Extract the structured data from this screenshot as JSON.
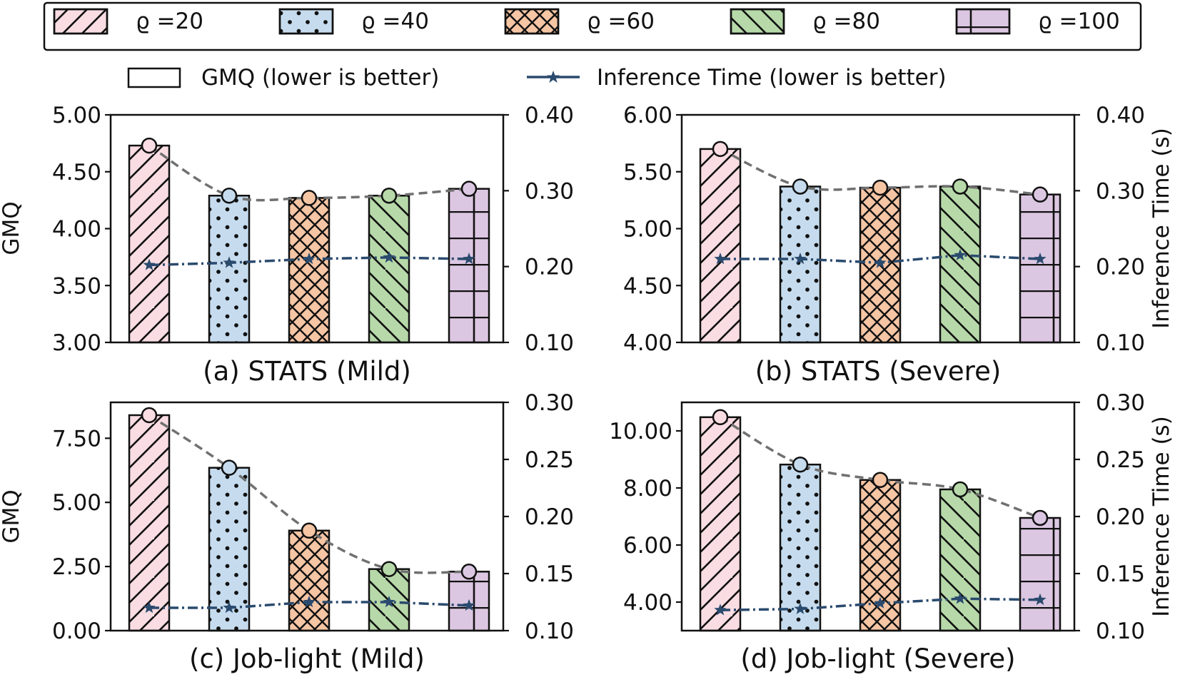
{
  "chart_data": [
    {
      "type": "bar",
      "title": "(a) STATS (Mild)",
      "categories": [
        "ϱ =20",
        "ϱ =40",
        "ϱ =60",
        "ϱ =80",
        "ϱ =100"
      ],
      "ylabel": "GMQ",
      "ylabel2": "",
      "ylim": [
        3.0,
        5.0
      ],
      "ylim2": [
        0.1,
        0.4
      ],
      "yticks": [
        "3.00",
        "3.50",
        "4.00",
        "4.50",
        "5.00"
      ],
      "yticks2": [
        "0.10",
        "0.20",
        "0.30",
        "0.40"
      ],
      "series": [
        {
          "name": "GMQ (lower is better)",
          "axis": "left",
          "values": [
            4.73,
            4.29,
            4.27,
            4.29,
            4.35
          ]
        },
        {
          "name": "Inference Time (lower is better)",
          "axis": "right",
          "values": [
            0.202,
            0.205,
            0.21,
            0.212,
            0.21
          ]
        }
      ]
    },
    {
      "type": "bar",
      "title": "(b) STATS (Severe)",
      "categories": [
        "ϱ =20",
        "ϱ =40",
        "ϱ =60",
        "ϱ =80",
        "ϱ =100"
      ],
      "ylabel": "",
      "ylabel2": "Inference Time (s)",
      "ylim": [
        4.0,
        6.0
      ],
      "ylim2": [
        0.1,
        0.4
      ],
      "yticks": [
        "4.00",
        "4.50",
        "5.00",
        "5.50",
        "6.00"
      ],
      "yticks2": [
        "0.10",
        "0.20",
        "0.30",
        "0.40"
      ],
      "series": [
        {
          "name": "GMQ (lower is better)",
          "axis": "left",
          "values": [
            5.7,
            5.37,
            5.36,
            5.37,
            5.3
          ]
        },
        {
          "name": "Inference Time (lower is better)",
          "axis": "right",
          "values": [
            0.21,
            0.21,
            0.205,
            0.215,
            0.21
          ]
        }
      ]
    },
    {
      "type": "bar",
      "title": "(c) Job-light (Mild)",
      "categories": [
        "ϱ =20",
        "ϱ =40",
        "ϱ =60",
        "ϱ =80",
        "ϱ =100"
      ],
      "ylabel": "GMQ",
      "ylabel2": "",
      "ylim": [
        0.0,
        8.9
      ],
      "ylim2": [
        0.1,
        0.3
      ],
      "yticks": [
        "0.00",
        "2.50",
        "5.00",
        "7.50"
      ],
      "yticks2": [
        "0.10",
        "0.15",
        "0.20",
        "0.25",
        "0.30"
      ],
      "series": [
        {
          "name": "GMQ (lower is better)",
          "axis": "left",
          "values": [
            8.4,
            6.35,
            3.9,
            2.4,
            2.3
          ]
        },
        {
          "name": "Inference Time (lower is better)",
          "axis": "right",
          "values": [
            0.12,
            0.12,
            0.125,
            0.125,
            0.122
          ]
        }
      ]
    },
    {
      "type": "bar",
      "title": "(d) Job-light (Severe)",
      "categories": [
        "ϱ =20",
        "ϱ =40",
        "ϱ =60",
        "ϱ =80",
        "ϱ =100"
      ],
      "ylabel": "",
      "ylabel2": "Inference Time (s)",
      "ylim": [
        3.0,
        11.0
      ],
      "ylim2": [
        0.1,
        0.3
      ],
      "yticks": [
        "4.00",
        "6.00",
        "8.00",
        "10.00"
      ],
      "yticks2": [
        "0.10",
        "0.15",
        "0.20",
        "0.25",
        "0.30"
      ],
      "series": [
        {
          "name": "GMQ (lower is better)",
          "axis": "left",
          "values": [
            10.48,
            8.82,
            8.28,
            7.95,
            6.95
          ]
        },
        {
          "name": "Inference Time (lower is better)",
          "axis": "right",
          "values": [
            0.118,
            0.119,
            0.124,
            0.128,
            0.127
          ]
        }
      ]
    }
  ],
  "legend": {
    "rho_items": [
      {
        "label": "ϱ =20",
        "fill": "#f9dde3",
        "hatch": "slash"
      },
      {
        "label": "ϱ =40",
        "fill": "#c6dcee",
        "hatch": "dots"
      },
      {
        "label": "ϱ =60",
        "fill": "#f5c5a4",
        "hatch": "cross"
      },
      {
        "label": "ϱ =80",
        "fill": "#b7d9a9",
        "hatch": "backslash"
      },
      {
        "label": "ϱ =100",
        "fill": "#dcc7e2",
        "hatch": "grid"
      }
    ],
    "gmq_label": "GMQ (lower is better)",
    "time_label": "Inference Time (lower is better)"
  },
  "colors": {
    "time_line": "#2a4a6e",
    "trend_line": "#707070",
    "edge": "#111111"
  }
}
